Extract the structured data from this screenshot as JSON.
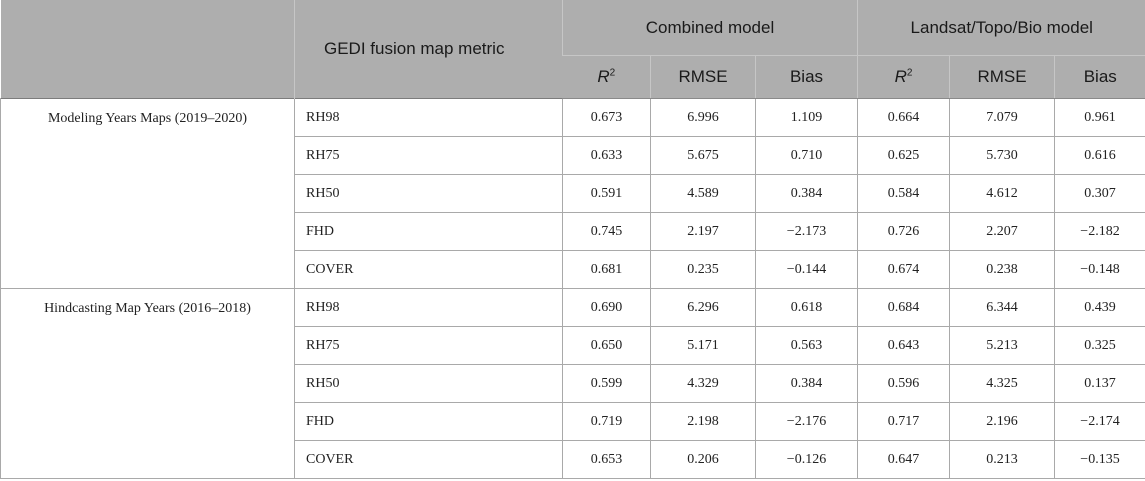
{
  "header": {
    "metric_label": "GEDI fusion map metric",
    "groups": [
      "Combined model",
      "Landsat/Topo/Bio model"
    ],
    "columns": [
      {
        "base": "R",
        "sup": "2"
      },
      {
        "base": "RMSE",
        "sup": ""
      },
      {
        "base": "Bias",
        "sup": ""
      },
      {
        "base": "R",
        "sup": "2"
      },
      {
        "base": "RMSE",
        "sup": ""
      },
      {
        "base": "Bias",
        "sup": ""
      }
    ]
  },
  "sections": [
    {
      "label": "Modeling Years Maps (2019–2020)",
      "rows": [
        {
          "metric": "RH98",
          "values": [
            "0.673",
            "6.996",
            "1.109",
            "0.664",
            "7.079",
            "0.961"
          ]
        },
        {
          "metric": "RH75",
          "values": [
            "0.633",
            "5.675",
            "0.710",
            "0.625",
            "5.730",
            "0.616"
          ]
        },
        {
          "metric": "RH50",
          "values": [
            "0.591",
            "4.589",
            "0.384",
            "0.584",
            "4.612",
            "0.307"
          ]
        },
        {
          "metric": "FHD",
          "values": [
            "0.745",
            "2.197",
            "−2.173",
            "0.726",
            "2.207",
            "−2.182"
          ]
        },
        {
          "metric": "COVER",
          "values": [
            "0.681",
            "0.235",
            "−0.144",
            "0.674",
            "0.238",
            "−0.148"
          ]
        }
      ]
    },
    {
      "label": "Hindcasting Map Years (2016–2018)",
      "rows": [
        {
          "metric": "RH98",
          "values": [
            "0.690",
            "6.296",
            "0.618",
            "0.684",
            "6.344",
            "0.439"
          ]
        },
        {
          "metric": "RH75",
          "values": [
            "0.650",
            "5.171",
            "0.563",
            "0.643",
            "5.213",
            "0.325"
          ]
        },
        {
          "metric": "RH50",
          "values": [
            "0.599",
            "4.329",
            "0.384",
            "0.596",
            "4.325",
            "0.137"
          ]
        },
        {
          "metric": "FHD",
          "values": [
            "0.719",
            "2.198",
            "−2.176",
            "0.717",
            "2.196",
            "−2.174"
          ]
        },
        {
          "metric": "COVER",
          "values": [
            "0.653",
            "0.206",
            "−0.126",
            "0.647",
            "0.213",
            "−0.135"
          ]
        }
      ]
    }
  ],
  "colors": {
    "header_bg": "#aeaeae",
    "grid_line": "#a9a9a9",
    "text": "#222222"
  }
}
